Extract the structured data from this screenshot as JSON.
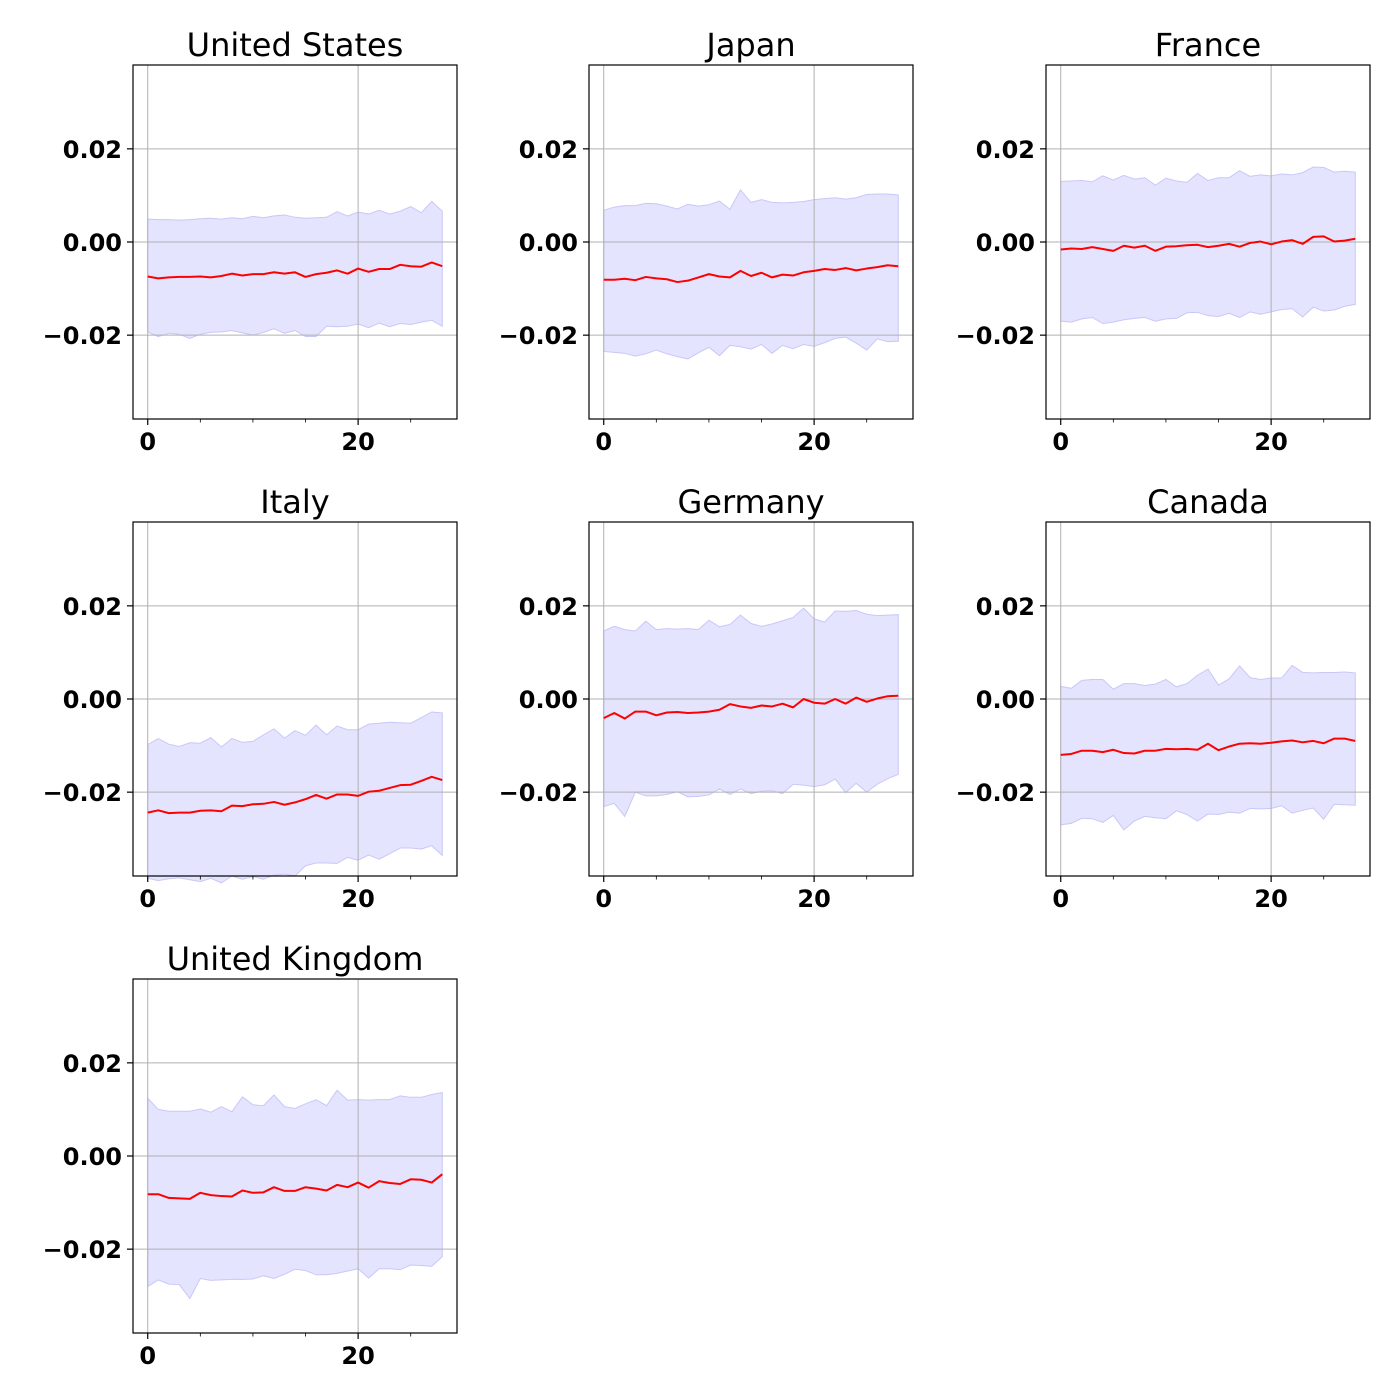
{
  "chart_data": [
    {
      "type": "line",
      "title": "United States",
      "x_ticks": [
        0,
        20
      ],
      "y_ticks": [
        -0.02,
        0.0,
        0.02
      ],
      "y_tick_labels": [
        "−0.02",
        "0.00",
        "0.02"
      ],
      "xlim": [
        -1.4,
        29.4
      ],
      "ylim": [
        -0.038,
        0.038
      ],
      "grid": true,
      "line_color": "#ff0000",
      "band_color": "#e4e4ff",
      "band_edge_color": "#c8c8f8",
      "x": [
        0,
        1,
        2,
        3,
        4,
        5,
        6,
        7,
        8,
        9,
        10,
        11,
        12,
        13,
        14,
        15,
        16,
        17,
        18,
        19,
        20,
        21,
        22,
        23,
        24,
        25,
        26,
        27,
        28
      ],
      "mean": [
        -0.0074,
        -0.0078,
        -0.0076,
        -0.0075,
        -0.0075,
        -0.0074,
        -0.0076,
        -0.0073,
        -0.0068,
        -0.0072,
        -0.0069,
        -0.0069,
        -0.0065,
        -0.0068,
        -0.0065,
        -0.0075,
        -0.0069,
        -0.0066,
        -0.0061,
        -0.0068,
        -0.0057,
        -0.0064,
        -0.0058,
        -0.0058,
        -0.0049,
        -0.0052,
        -0.0053,
        -0.0044,
        -0.0052
      ],
      "upper": [
        0.0049,
        0.0048,
        0.0048,
        0.0047,
        0.0048,
        0.005,
        0.0051,
        0.0049,
        0.0052,
        0.005,
        0.0055,
        0.0052,
        0.0056,
        0.0058,
        0.0053,
        0.0051,
        0.0052,
        0.0053,
        0.0065,
        0.0056,
        0.0064,
        0.006,
        0.0068,
        0.006,
        0.0066,
        0.0076,
        0.0063,
        0.0087,
        0.0066
      ],
      "lower": [
        -0.0193,
        -0.0203,
        -0.0196,
        -0.0198,
        -0.0207,
        -0.0198,
        -0.0194,
        -0.0193,
        -0.019,
        -0.0195,
        -0.02,
        -0.0194,
        -0.0186,
        -0.0196,
        -0.019,
        -0.0203,
        -0.0203,
        -0.0181,
        -0.0182,
        -0.0181,
        -0.0176,
        -0.0184,
        -0.0174,
        -0.0182,
        -0.0175,
        -0.0177,
        -0.0172,
        -0.0168,
        -0.0181
      ]
    },
    {
      "type": "line",
      "title": "Japan",
      "x_ticks": [
        0,
        20
      ],
      "y_ticks": [
        -0.02,
        0.0,
        0.02
      ],
      "y_tick_labels": [
        "−0.02",
        "0.00",
        "0.02"
      ],
      "xlim": [
        -1.4,
        29.4
      ],
      "ylim": [
        -0.038,
        0.038
      ],
      "grid": true,
      "line_color": "#ff0000",
      "band_color": "#e4e4ff",
      "band_edge_color": "#c8c8f8",
      "x": [
        0,
        1,
        2,
        3,
        4,
        5,
        6,
        7,
        8,
        9,
        10,
        11,
        12,
        13,
        14,
        15,
        16,
        17,
        18,
        19,
        20,
        21,
        22,
        23,
        24,
        25,
        26,
        27,
        28
      ],
      "mean": [
        -0.0081,
        -0.0081,
        -0.0079,
        -0.0082,
        -0.0075,
        -0.0078,
        -0.008,
        -0.0086,
        -0.0083,
        -0.0076,
        -0.0069,
        -0.0074,
        -0.0076,
        -0.0062,
        -0.0073,
        -0.0066,
        -0.0076,
        -0.007,
        -0.0072,
        -0.0065,
        -0.0062,
        -0.0058,
        -0.006,
        -0.0056,
        -0.0061,
        -0.0057,
        -0.0054,
        -0.005,
        -0.0052
      ],
      "upper": [
        0.0068,
        0.0075,
        0.0078,
        0.0078,
        0.0083,
        0.0082,
        0.0077,
        0.0071,
        0.0081,
        0.0077,
        0.008,
        0.0088,
        0.007,
        0.0112,
        0.0085,
        0.0091,
        0.0085,
        0.0084,
        0.0085,
        0.0087,
        0.0091,
        0.0093,
        0.0095,
        0.0092,
        0.0095,
        0.0102,
        0.0103,
        0.0103,
        0.0101
      ],
      "lower": [
        -0.0235,
        -0.0237,
        -0.0239,
        -0.0245,
        -0.024,
        -0.0232,
        -0.024,
        -0.0246,
        -0.0251,
        -0.0238,
        -0.0226,
        -0.0244,
        -0.0222,
        -0.0225,
        -0.023,
        -0.022,
        -0.0239,
        -0.0222,
        -0.0229,
        -0.022,
        -0.0224,
        -0.0216,
        -0.0207,
        -0.0204,
        -0.0217,
        -0.0232,
        -0.0208,
        -0.0214,
        -0.0213
      ]
    },
    {
      "type": "line",
      "title": "France",
      "x_ticks": [
        0,
        20
      ],
      "y_ticks": [
        -0.02,
        0.0,
        0.02
      ],
      "y_tick_labels": [
        "−0.02",
        "0.00",
        "0.02"
      ],
      "xlim": [
        -1.4,
        29.4
      ],
      "ylim": [
        -0.038,
        0.038
      ],
      "grid": true,
      "line_color": "#ff0000",
      "band_color": "#e4e4ff",
      "band_edge_color": "#c8c8f8",
      "x": [
        0,
        1,
        2,
        3,
        4,
        5,
        6,
        7,
        8,
        9,
        10,
        11,
        12,
        13,
        14,
        15,
        16,
        17,
        18,
        19,
        20,
        21,
        22,
        23,
        24,
        25,
        26,
        27,
        28
      ],
      "mean": [
        -0.0016,
        -0.0014,
        -0.0015,
        -0.0011,
        -0.0015,
        -0.0019,
        -0.0008,
        -0.0012,
        -0.0008,
        -0.0019,
        -0.001,
        -0.0009,
        -0.0007,
        -0.0006,
        -0.0011,
        -0.0008,
        -0.0004,
        -0.001,
        -0.0002,
        0.0001,
        -0.0005,
        0.0001,
        0.0004,
        -0.0004,
        0.0011,
        0.0012,
        0.0001,
        0.0003,
        0.0007
      ],
      "upper": [
        0.013,
        0.0131,
        0.0132,
        0.0129,
        0.0142,
        0.0133,
        0.0143,
        0.0135,
        0.0138,
        0.0122,
        0.0137,
        0.0131,
        0.0128,
        0.0147,
        0.0132,
        0.0138,
        0.0138,
        0.0153,
        0.0141,
        0.0144,
        0.0142,
        0.0146,
        0.0144,
        0.0149,
        0.0161,
        0.016,
        0.015,
        0.0152,
        0.015
      ],
      "lower": [
        -0.017,
        -0.0172,
        -0.0165,
        -0.0162,
        -0.0175,
        -0.0172,
        -0.0167,
        -0.0164,
        -0.0162,
        -0.017,
        -0.0165,
        -0.0164,
        -0.0152,
        -0.0151,
        -0.0158,
        -0.016,
        -0.0153,
        -0.0162,
        -0.015,
        -0.0155,
        -0.015,
        -0.0145,
        -0.0143,
        -0.0161,
        -0.014,
        -0.0148,
        -0.0146,
        -0.0138,
        -0.0134
      ]
    },
    {
      "type": "line",
      "title": "Italy",
      "x_ticks": [
        0,
        20
      ],
      "y_ticks": [
        -0.02,
        0.0,
        0.02
      ],
      "y_tick_labels": [
        "−0.02",
        "0.00",
        "0.02"
      ],
      "xlim": [
        -1.4,
        29.4
      ],
      "ylim": [
        -0.038,
        0.038
      ],
      "grid": true,
      "line_color": "#ff0000",
      "band_color": "#e4e4ff",
      "band_edge_color": "#c8c8f8",
      "x": [
        0,
        1,
        2,
        3,
        4,
        5,
        6,
        7,
        8,
        9,
        10,
        11,
        12,
        13,
        14,
        15,
        16,
        17,
        18,
        19,
        20,
        21,
        22,
        23,
        24,
        25,
        26,
        27,
        28
      ],
      "mean": [
        -0.0244,
        -0.0239,
        -0.0245,
        -0.0244,
        -0.0244,
        -0.024,
        -0.0239,
        -0.0241,
        -0.0229,
        -0.023,
        -0.0226,
        -0.0225,
        -0.0221,
        -0.0227,
        -0.0222,
        -0.0215,
        -0.0206,
        -0.0214,
        -0.0205,
        -0.0205,
        -0.0208,
        -0.0199,
        -0.0197,
        -0.0191,
        -0.0185,
        -0.0184,
        -0.0176,
        -0.0167,
        -0.0174
      ],
      "upper": [
        -0.0098,
        -0.0085,
        -0.0097,
        -0.0102,
        -0.0094,
        -0.0095,
        -0.0083,
        -0.0103,
        -0.0085,
        -0.0093,
        -0.0091,
        -0.0077,
        -0.0064,
        -0.0084,
        -0.0068,
        -0.0078,
        -0.0056,
        -0.0077,
        -0.0058,
        -0.0066,
        -0.0066,
        -0.0054,
        -0.0052,
        -0.005,
        -0.0051,
        -0.0052,
        -0.004,
        -0.0028,
        -0.003
      ],
      "lower": [
        -0.0385,
        -0.039,
        -0.0386,
        -0.0384,
        -0.0388,
        -0.0392,
        -0.0385,
        -0.0395,
        -0.038,
        -0.0387,
        -0.0381,
        -0.0387,
        -0.0378,
        -0.0376,
        -0.038,
        -0.0358,
        -0.0352,
        -0.0352,
        -0.0353,
        -0.034,
        -0.0346,
        -0.0335,
        -0.0344,
        -0.0332,
        -0.032,
        -0.032,
        -0.0322,
        -0.0315,
        -0.0336
      ]
    },
    {
      "type": "line",
      "title": "Germany",
      "x_ticks": [
        0,
        20
      ],
      "y_ticks": [
        -0.02,
        0.0,
        0.02
      ],
      "y_tick_labels": [
        "−0.02",
        "0.00",
        "0.02"
      ],
      "xlim": [
        -1.4,
        29.4
      ],
      "ylim": [
        -0.038,
        0.038
      ],
      "grid": true,
      "line_color": "#ff0000",
      "band_color": "#e4e4ff",
      "band_edge_color": "#c8c8f8",
      "x": [
        0,
        1,
        2,
        3,
        4,
        5,
        6,
        7,
        8,
        9,
        10,
        11,
        12,
        13,
        14,
        15,
        16,
        17,
        18,
        19,
        20,
        21,
        22,
        23,
        24,
        25,
        26,
        27,
        28
      ],
      "mean": [
        -0.0041,
        -0.003,
        -0.0042,
        -0.0027,
        -0.0027,
        -0.0035,
        -0.0029,
        -0.0028,
        -0.003,
        -0.0029,
        -0.0027,
        -0.0023,
        -0.0011,
        -0.0016,
        -0.0019,
        -0.0014,
        -0.0016,
        -0.001,
        -0.0018,
        -0.0,
        -0.0008,
        -0.001,
        -0.0,
        -0.001,
        0.0003,
        -0.0006,
        0.0001,
        0.0006,
        0.0007
      ],
      "upper": [
        0.0146,
        0.0156,
        0.0149,
        0.0146,
        0.0167,
        0.0149,
        0.0151,
        0.015,
        0.0151,
        0.0149,
        0.0169,
        0.0155,
        0.016,
        0.018,
        0.0162,
        0.0156,
        0.0161,
        0.0168,
        0.0175,
        0.0195,
        0.0172,
        0.0165,
        0.0189,
        0.0188,
        0.019,
        0.0182,
        0.0179,
        0.018,
        0.0181
      ],
      "lower": [
        -0.0231,
        -0.0224,
        -0.0252,
        -0.02,
        -0.0208,
        -0.0208,
        -0.0205,
        -0.0199,
        -0.021,
        -0.0209,
        -0.0206,
        -0.0193,
        -0.0205,
        -0.0193,
        -0.0203,
        -0.0198,
        -0.0197,
        -0.0203,
        -0.0183,
        -0.0185,
        -0.0188,
        -0.0184,
        -0.0172,
        -0.0201,
        -0.0181,
        -0.02,
        -0.0183,
        -0.0171,
        -0.0162
      ]
    },
    {
      "type": "line",
      "title": "Canada",
      "x_ticks": [
        0,
        20
      ],
      "y_ticks": [
        -0.02,
        0.0,
        0.02
      ],
      "y_tick_labels": [
        "−0.02",
        "0.00",
        "0.02"
      ],
      "xlim": [
        -1.4,
        29.4
      ],
      "ylim": [
        -0.038,
        0.038
      ],
      "grid": true,
      "line_color": "#ff0000",
      "band_color": "#e4e4ff",
      "band_edge_color": "#c8c8f8",
      "x": [
        0,
        1,
        2,
        3,
        4,
        5,
        6,
        7,
        8,
        9,
        10,
        11,
        12,
        13,
        14,
        15,
        16,
        17,
        18,
        19,
        20,
        21,
        22,
        23,
        24,
        25,
        26,
        27,
        28
      ],
      "mean": [
        -0.012,
        -0.0118,
        -0.0111,
        -0.0111,
        -0.0114,
        -0.0109,
        -0.0116,
        -0.0117,
        -0.0111,
        -0.0111,
        -0.0107,
        -0.0108,
        -0.0107,
        -0.0109,
        -0.0096,
        -0.011,
        -0.0102,
        -0.0096,
        -0.0095,
        -0.0096,
        -0.0094,
        -0.0091,
        -0.0089,
        -0.0093,
        -0.009,
        -0.0095,
        -0.0085,
        -0.0085,
        -0.009
      ],
      "upper": [
        0.0027,
        0.0023,
        0.004,
        0.0042,
        0.0042,
        0.0021,
        0.0033,
        0.0033,
        0.0029,
        0.0032,
        0.0042,
        0.0026,
        0.0033,
        0.0051,
        0.0064,
        0.003,
        0.0043,
        0.0071,
        0.0046,
        0.0042,
        0.0045,
        0.0045,
        0.0072,
        0.0057,
        0.0056,
        0.0057,
        0.0057,
        0.0058,
        0.0056
      ],
      "lower": [
        -0.027,
        -0.0267,
        -0.0256,
        -0.0257,
        -0.0265,
        -0.025,
        -0.0281,
        -0.0262,
        -0.0252,
        -0.0255,
        -0.0257,
        -0.024,
        -0.0248,
        -0.0262,
        -0.0247,
        -0.0248,
        -0.0243,
        -0.0245,
        -0.0235,
        -0.0236,
        -0.0235,
        -0.0229,
        -0.0245,
        -0.0239,
        -0.0234,
        -0.0258,
        -0.0226,
        -0.0227,
        -0.0228
      ]
    },
    {
      "type": "line",
      "title": "United Kingdom",
      "x_ticks": [
        0,
        20
      ],
      "y_ticks": [
        -0.02,
        0.0,
        0.02
      ],
      "y_tick_labels": [
        "−0.02",
        "0.00",
        "0.02"
      ],
      "xlim": [
        -1.4,
        29.4
      ],
      "ylim": [
        -0.038,
        0.038
      ],
      "grid": true,
      "line_color": "#ff0000",
      "band_color": "#e4e4ff",
      "band_edge_color": "#c8c8f8",
      "x": [
        0,
        1,
        2,
        3,
        4,
        5,
        6,
        7,
        8,
        9,
        10,
        11,
        12,
        13,
        14,
        15,
        16,
        17,
        18,
        19,
        20,
        21,
        22,
        23,
        24,
        25,
        26,
        27,
        28
      ],
      "mean": [
        -0.0082,
        -0.0082,
        -0.009,
        -0.0091,
        -0.0092,
        -0.0079,
        -0.0084,
        -0.0086,
        -0.0087,
        -0.0074,
        -0.0079,
        -0.0078,
        -0.0067,
        -0.0075,
        -0.0075,
        -0.0067,
        -0.007,
        -0.0074,
        -0.0062,
        -0.0067,
        -0.0057,
        -0.0068,
        -0.0054,
        -0.0058,
        -0.006,
        -0.005,
        -0.0051,
        -0.0057,
        -0.0039
      ],
      "upper": [
        0.0124,
        0.01,
        0.0096,
        0.0096,
        0.0096,
        0.0101,
        0.0094,
        0.0106,
        0.0095,
        0.0127,
        0.011,
        0.0108,
        0.0131,
        0.0106,
        0.0102,
        0.0112,
        0.0121,
        0.0108,
        0.0141,
        0.012,
        0.0121,
        0.012,
        0.0121,
        0.0121,
        0.0129,
        0.0126,
        0.0126,
        0.0132,
        0.0136
      ],
      "lower": [
        -0.028,
        -0.0266,
        -0.0275,
        -0.0276,
        -0.0306,
        -0.0263,
        -0.0267,
        -0.0266,
        -0.0265,
        -0.0265,
        -0.0264,
        -0.0257,
        -0.0263,
        -0.0254,
        -0.0243,
        -0.0246,
        -0.0255,
        -0.0255,
        -0.0252,
        -0.0247,
        -0.0242,
        -0.0262,
        -0.0242,
        -0.0242,
        -0.0244,
        -0.0234,
        -0.0235,
        -0.0237,
        -0.0216
      ]
    }
  ]
}
